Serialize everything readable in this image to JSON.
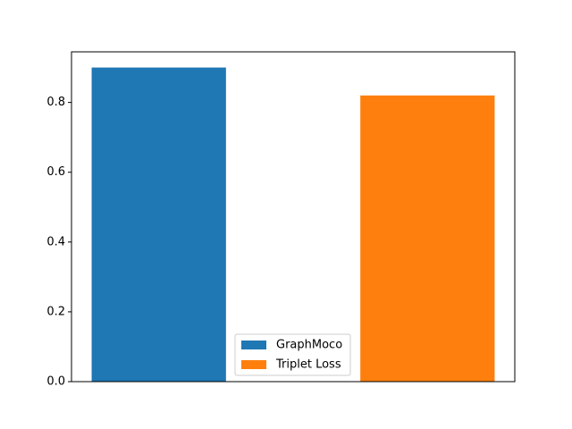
{
  "chart_data": {
    "type": "bar",
    "title": "",
    "xlabel": "",
    "ylabel": "",
    "ylim": [
      0,
      0.945
    ],
    "yticks": [
      0.0,
      0.2,
      0.4,
      0.6,
      0.8
    ],
    "ytick_labels": [
      "0.0",
      "0.2",
      "0.4",
      "0.6",
      "0.8"
    ],
    "show_xticks": false,
    "grid": false,
    "legend_position": "lower center",
    "series": [
      {
        "name": "GraphMoco",
        "value": 0.9,
        "color": "#1f77b4"
      },
      {
        "name": "Triplet Loss",
        "value": 0.82,
        "color": "#ff7f0e"
      }
    ]
  }
}
